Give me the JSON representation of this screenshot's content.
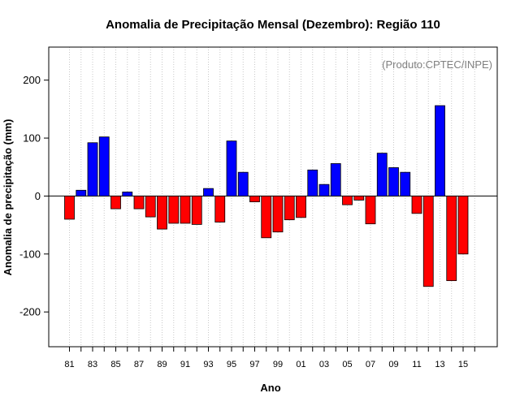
{
  "chart_data": {
    "type": "bar",
    "title": "Anomalia de Precipitação Mensal (Dezembro): Região 110",
    "xlabel": "Ano",
    "ylabel": "Anomalia de precipitação (mm)",
    "annotation": "(Produto:CPTEC/INPE)",
    "ylim": [
      -260,
      257
    ],
    "yticks": [
      -200,
      -100,
      0,
      100,
      200
    ],
    "grid": "vertical-dotted",
    "colors": {
      "positive": "#0000ff",
      "negative": "#ff0000"
    },
    "categories": [
      "81",
      "82",
      "83",
      "84",
      "85",
      "86",
      "87",
      "88",
      "89",
      "90",
      "91",
      "92",
      "93",
      "94",
      "95",
      "96",
      "97",
      "98",
      "99",
      "00",
      "01",
      "02",
      "03",
      "04",
      "05",
      "06",
      "07",
      "08",
      "09",
      "10",
      "11",
      "12",
      "13",
      "14",
      "15"
    ],
    "xtick_labels": [
      "81",
      "83",
      "85",
      "87",
      "89",
      "91",
      "93",
      "95",
      "97",
      "99",
      "01",
      "03",
      "05",
      "07",
      "09",
      "11",
      "13",
      "15"
    ],
    "values": [
      -40,
      10,
      92,
      102,
      -22,
      7,
      -22,
      -36,
      -57,
      -47,
      -47,
      -49,
      13,
      -45,
      95,
      41,
      -10,
      -72,
      -62,
      -41,
      -37,
      45,
      20,
      56,
      -15,
      -7,
      -48,
      74,
      49,
      41,
      -30,
      -156,
      156,
      -146,
      -100
    ]
  }
}
